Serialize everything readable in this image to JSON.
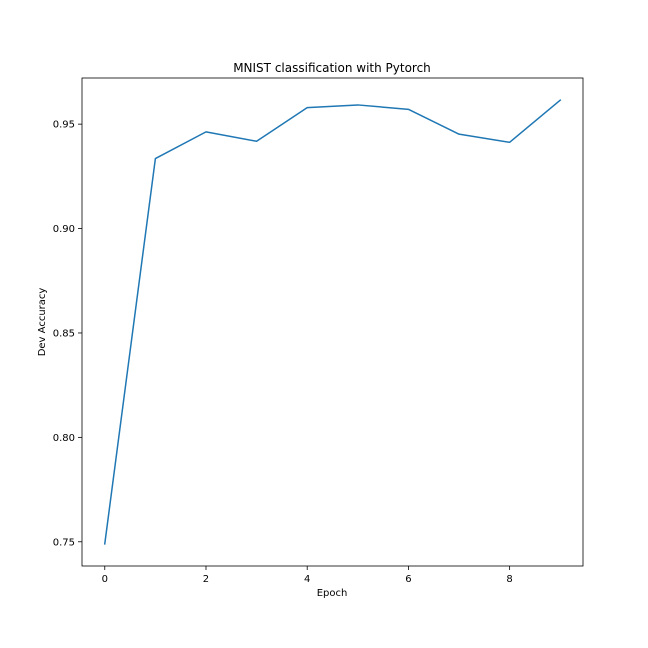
{
  "chart_data": {
    "type": "line",
    "title": "MNIST classification with Pytorch",
    "xlabel": "Epoch",
    "ylabel": "Dev Accuracy",
    "x": [
      0,
      1,
      2,
      3,
      4,
      5,
      6,
      7,
      8,
      9
    ],
    "series": [
      {
        "values": [
          0.749,
          0.9335,
          0.9463,
          0.9418,
          0.9579,
          0.9592,
          0.9571,
          0.9452,
          0.9413,
          0.9615
        ],
        "color": "#1f77b4"
      }
    ],
    "xlim": [
      -0.45,
      9.45
    ],
    "ylim": [
      0.7384,
      0.9721
    ],
    "xticks": [
      0,
      2,
      4,
      6,
      8
    ],
    "xtick_labels": [
      "0",
      "2",
      "4",
      "6",
      "8"
    ],
    "yticks": [
      0.75,
      0.8,
      0.85,
      0.9,
      0.95
    ],
    "ytick_labels": [
      "0.75",
      "0.80",
      "0.85",
      "0.90",
      "0.95"
    ],
    "grid": false,
    "legend": "none"
  }
}
